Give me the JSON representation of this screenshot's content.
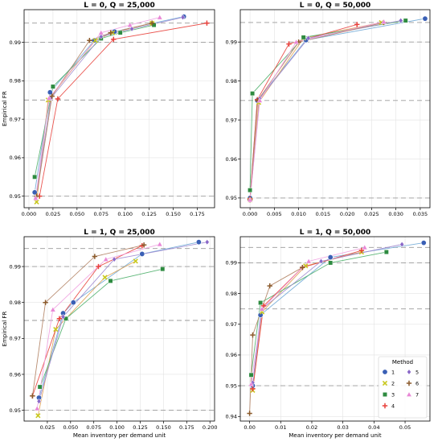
{
  "figure": {
    "legend_title": "Method",
    "legend_labels": [
      "1",
      "2",
      "3",
      "4",
      "5",
      "6",
      "7"
    ],
    "series_colors": {
      "1": "#3a5fb5",
      "2": "#c8c81e",
      "3": "#2e8b40",
      "4": "#e8413c",
      "5": "#8a68c8",
      "6": "#8b5a2b",
      "7": "#e887d6"
    },
    "series_markers": {
      "1": "circle",
      "2": "x",
      "3": "square",
      "4": "plus",
      "5": "diamond",
      "6": "plus",
      "7": "triangle"
    },
    "line_colors": {
      "1": "#6fa8d6",
      "2": "#e0a050",
      "3": "#4caf6a",
      "4": "#e8413c",
      "5": "#a08ad0",
      "6": "#b08060",
      "7": "#f0a0e0"
    }
  },
  "chart_data": [
    {
      "type": "line",
      "title": "L = 0, Q = 25,000",
      "xlabel": "",
      "ylabel": "Empirical FR",
      "xlim": [
        -0.005,
        0.193
      ],
      "ylim": [
        0.947,
        0.9985
      ],
      "xticks": [
        0.0,
        0.025,
        0.05,
        0.075,
        0.1,
        0.125,
        0.15,
        0.175
      ],
      "xtick_labels": [
        "0.000",
        "0.025",
        "0.050",
        "0.075",
        "0.100",
        "0.125",
        "0.150",
        "0.175"
      ],
      "yticks": [
        0.95,
        0.96,
        0.97,
        0.98,
        0.99
      ],
      "ytick_labels": [
        "0.95",
        "0.96",
        "0.97",
        "0.98",
        "0.99"
      ],
      "hlines": [
        0.95,
        0.975,
        0.99,
        0.995
      ],
      "series": [
        {
          "name": "1",
          "points": [
            [
              0.006,
              0.951
            ],
            [
              0.022,
              0.977
            ],
            [
              0.068,
              0.9905
            ],
            [
              0.089,
              0.9928
            ],
            [
              0.161,
              0.9967
            ]
          ]
        },
        {
          "name": "2",
          "points": [
            [
              0.008,
              0.9485
            ],
            [
              0.02,
              0.975
            ],
            [
              0.069,
              0.9905
            ],
            [
              0.087,
              0.9925
            ],
            [
              0.128,
              0.995
            ]
          ]
        },
        {
          "name": "3",
          "points": [
            [
              0.006,
              0.955
            ],
            [
              0.025,
              0.9785
            ],
            [
              0.075,
              0.991
            ],
            [
              0.095,
              0.9925
            ],
            [
              0.13,
              0.9945
            ]
          ]
        },
        {
          "name": "4",
          "points": [
            [
              0.011,
              0.95
            ],
            [
              0.03,
              0.9753
            ],
            [
              0.088,
              0.9908
            ],
            [
              0.185,
              0.995
            ]
          ]
        },
        {
          "name": "5",
          "points": [
            [
              0.007,
              0.9495
            ],
            [
              0.023,
              0.9755
            ],
            [
              0.075,
              0.9915
            ],
            [
              0.107,
              0.9935
            ],
            [
              0.16,
              0.9965
            ]
          ]
        },
        {
          "name": "6",
          "points": [
            [
              0.008,
              0.95
            ],
            [
              0.024,
              0.976
            ],
            [
              0.063,
              0.9905
            ],
            [
              0.085,
              0.9925
            ],
            [
              0.128,
              0.995
            ]
          ]
        },
        {
          "name": "7",
          "points": [
            [
              0.007,
              0.9495
            ],
            [
              0.021,
              0.9755
            ],
            [
              0.075,
              0.9925
            ],
            [
              0.105,
              0.9945
            ],
            [
              0.136,
              0.9965
            ]
          ]
        }
      ]
    },
    {
      "type": "line",
      "title": "L = 0, Q = 50,000",
      "xlabel": "",
      "ylabel": "",
      "xlim": [
        -0.002,
        0.037
      ],
      "ylim": [
        0.9475,
        0.9983
      ],
      "xticks": [
        0.0,
        0.005,
        0.01,
        0.015,
        0.02,
        0.025,
        0.03,
        0.035
      ],
      "xtick_labels": [
        "0.000",
        "0.005",
        "0.010",
        "0.015",
        "0.020",
        "0.025",
        "0.030",
        "0.035"
      ],
      "yticks": [
        0.95,
        0.96,
        0.97,
        0.98,
        0.99
      ],
      "ytick_labels": [
        "0.95",
        "0.96",
        "0.97",
        "0.98",
        "0.99"
      ],
      "hlines": [
        0.95,
        0.975,
        0.99,
        0.995
      ],
      "series": [
        {
          "name": "1",
          "points": [
            [
              0.0,
              0.95
            ],
            [
              0.0015,
              0.975
            ],
            [
              0.0115,
              0.9905
            ],
            [
              0.036,
              0.996
            ]
          ]
        },
        {
          "name": "2",
          "points": [
            [
              0.0,
              0.9495
            ],
            [
              0.0018,
              0.9745
            ],
            [
              0.011,
              0.991
            ],
            [
              0.027,
              0.995
            ]
          ]
        },
        {
          "name": "3",
          "points": [
            [
              0.0,
              0.952
            ],
            [
              0.0005,
              0.9768
            ],
            [
              0.011,
              0.9912
            ],
            [
              0.032,
              0.9955
            ]
          ]
        },
        {
          "name": "4",
          "points": [
            [
              0.0,
              0.9498
            ],
            [
              0.0015,
              0.9752
            ],
            [
              0.008,
              0.9895
            ],
            [
              0.022,
              0.9945
            ]
          ]
        },
        {
          "name": "5",
          "points": [
            [
              0.0,
              0.9495
            ],
            [
              0.002,
              0.9755
            ],
            [
              0.012,
              0.991
            ],
            [
              0.031,
              0.9955
            ]
          ]
        },
        {
          "name": "6",
          "points": [
            [
              0.0,
              0.9495
            ],
            [
              0.0016,
              0.975
            ],
            [
              0.01,
              0.99
            ],
            [
              0.0275,
              0.995
            ]
          ]
        },
        {
          "name": "7",
          "points": [
            [
              0.0,
              0.9495
            ],
            [
              0.002,
              0.975
            ],
            [
              0.0095,
              0.99
            ],
            [
              0.0275,
              0.9952
            ]
          ]
        }
      ]
    },
    {
      "type": "line",
      "title": "L = 1, Q = 25,000",
      "xlabel": "Mean inventory per demand unit",
      "ylabel": "Empirical FR",
      "xlim": [
        0.0,
        0.205
      ],
      "ylim": [
        0.947,
        0.9983
      ],
      "xticks": [
        0.025,
        0.05,
        0.075,
        0.1,
        0.125,
        0.15,
        0.175,
        0.2
      ],
      "xtick_labels": [
        "0.025",
        "0.050",
        "0.075",
        "0.100",
        "0.125",
        "0.150",
        "0.175",
        "0.200"
      ],
      "yticks": [
        0.95,
        0.96,
        0.97,
        0.98,
        0.99
      ],
      "ytick_labels": [
        "0.95",
        "0.96",
        "0.97",
        "0.98",
        "0.99"
      ],
      "hlines": [
        0.95,
        0.975,
        0.99,
        0.995
      ],
      "series": [
        {
          "name": "1",
          "points": [
            [
              0.016,
              0.9535
            ],
            [
              0.042,
              0.977
            ],
            [
              0.053,
              0.98
            ],
            [
              0.127,
              0.9935
            ],
            [
              0.188,
              0.9968
            ]
          ]
        },
        {
          "name": "2",
          "points": [
            [
              0.015,
              0.9485
            ],
            [
              0.034,
              0.9725
            ],
            [
              0.087,
              0.987
            ],
            [
              0.12,
              0.9915
            ]
          ]
        },
        {
          "name": "3",
          "points": [
            [
              0.017,
              0.9565
            ],
            [
              0.045,
              0.9755
            ],
            [
              0.093,
              0.986
            ],
            [
              0.149,
              0.9893
            ]
          ]
        },
        {
          "name": "4",
          "points": [
            [
              0.009,
              0.954
            ],
            [
              0.038,
              0.9755
            ],
            [
              0.08,
              0.99
            ],
            [
              0.127,
              0.9958
            ]
          ]
        },
        {
          "name": "5",
          "points": [
            [
              0.016,
              0.9525
            ],
            [
              0.042,
              0.976
            ],
            [
              0.097,
              0.992
            ],
            [
              0.197,
              0.9968
            ]
          ]
        },
        {
          "name": "6",
          "points": [
            [
              0.009,
              0.954
            ],
            [
              0.023,
              0.98
            ],
            [
              0.076,
              0.9928
            ],
            [
              0.129,
              0.996
            ]
          ]
        },
        {
          "name": "7",
          "points": [
            [
              0.014,
              0.9505
            ],
            [
              0.031,
              0.978
            ],
            [
              0.088,
              0.992
            ],
            [
              0.146,
              0.9962
            ]
          ]
        }
      ]
    },
    {
      "type": "line",
      "title": "L = 1, Q = 50,000",
      "xlabel": "Mean inventory per demand unit",
      "ylabel": "",
      "xlim": [
        -0.003,
        0.058
      ],
      "ylim": [
        0.9385,
        0.9985
      ],
      "xticks": [
        0.0,
        0.01,
        0.02,
        0.03,
        0.04,
        0.05
      ],
      "xtick_labels": [
        "0.00",
        "0.01",
        "0.02",
        "0.03",
        "0.04",
        "0.05"
      ],
      "yticks": [
        0.94,
        0.95,
        0.96,
        0.97,
        0.98,
        0.99
      ],
      "ytick_labels": [
        "0.94",
        "0.95",
        "0.96",
        "0.97",
        "0.98",
        "0.99"
      ],
      "hlines": [
        0.95,
        0.975,
        0.99,
        0.995
      ],
      "series": [
        {
          "name": "1",
          "points": [
            [
              0.001,
              0.95
            ],
            [
              0.0035,
              0.973
            ],
            [
              0.026,
              0.9918
            ],
            [
              0.056,
              0.9965
            ]
          ]
        },
        {
          "name": "2",
          "points": [
            [
              0.001,
              0.9485
            ],
            [
              0.004,
              0.974
            ],
            [
              0.018,
              0.989
            ],
            [
              0.036,
              0.9935
            ]
          ]
        },
        {
          "name": "3",
          "points": [
            [
              0.0005,
              0.9535
            ],
            [
              0.0035,
              0.977
            ],
            [
              0.026,
              0.99
            ],
            [
              0.044,
              0.9935
            ]
          ]
        },
        {
          "name": "4",
          "points": [
            [
              0.001,
              0.949
            ],
            [
              0.0045,
              0.976
            ],
            [
              0.017,
              0.9885
            ],
            [
              0.036,
              0.994
            ]
          ]
        },
        {
          "name": "5",
          "points": [
            [
              0.001,
              0.951
            ],
            [
              0.004,
              0.975
            ],
            [
              0.023,
              0.9905
            ],
            [
              0.049,
              0.996
            ]
          ]
        },
        {
          "name": "6",
          "points": [
            [
              0.0,
              0.941
            ],
            [
              0.001,
              0.9665
            ],
            [
              0.0065,
              0.9825
            ],
            [
              0.017,
              0.9885
            ]
          ]
        },
        {
          "name": "7",
          "points": [
            [
              0.0005,
              0.9505
            ],
            [
              0.004,
              0.975
            ],
            [
              0.019,
              0.9905
            ],
            [
              0.037,
              0.995
            ]
          ]
        }
      ]
    }
  ]
}
